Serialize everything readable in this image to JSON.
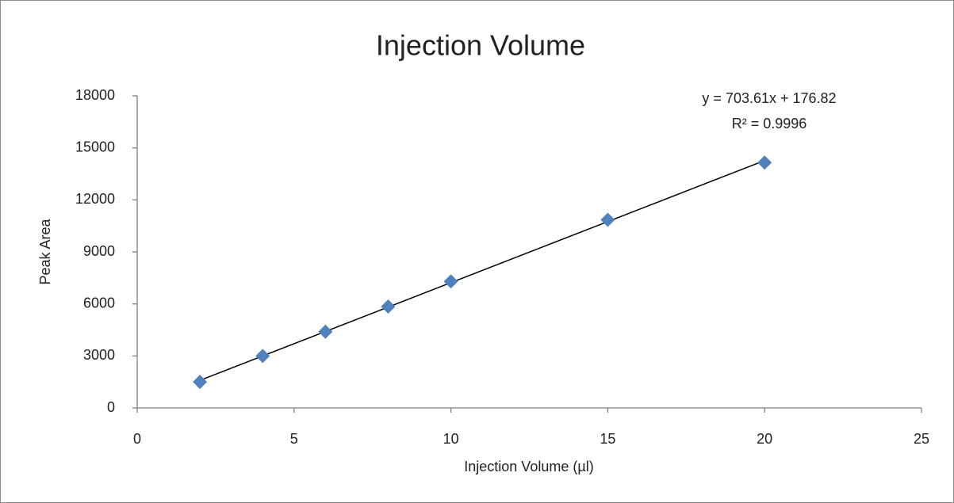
{
  "chart_data": {
    "type": "scatter",
    "title": "Injection Volume",
    "x_label": "Injection Volume (µl)",
    "y_label": "Peak Area",
    "series": [
      {
        "name": "Peak Area",
        "color": "#4f81bd",
        "x": [
          2,
          4,
          6,
          8,
          10,
          15,
          20
        ],
        "values": [
          1500,
          3000,
          4400,
          5850,
          7300,
          10850,
          14150
        ]
      }
    ],
    "trendline": "linear",
    "annotations": [
      "y = 703.61x + 176.82",
      "R² = 0.9996"
    ],
    "xlim": [
      0,
      25
    ],
    "xticks": [
      0,
      5,
      10,
      15,
      20,
      25
    ],
    "ylim": [
      0,
      18000
    ],
    "yticks": [
      0,
      3000,
      6000,
      9000,
      12000,
      15000,
      18000
    ],
    "grid": false
  }
}
